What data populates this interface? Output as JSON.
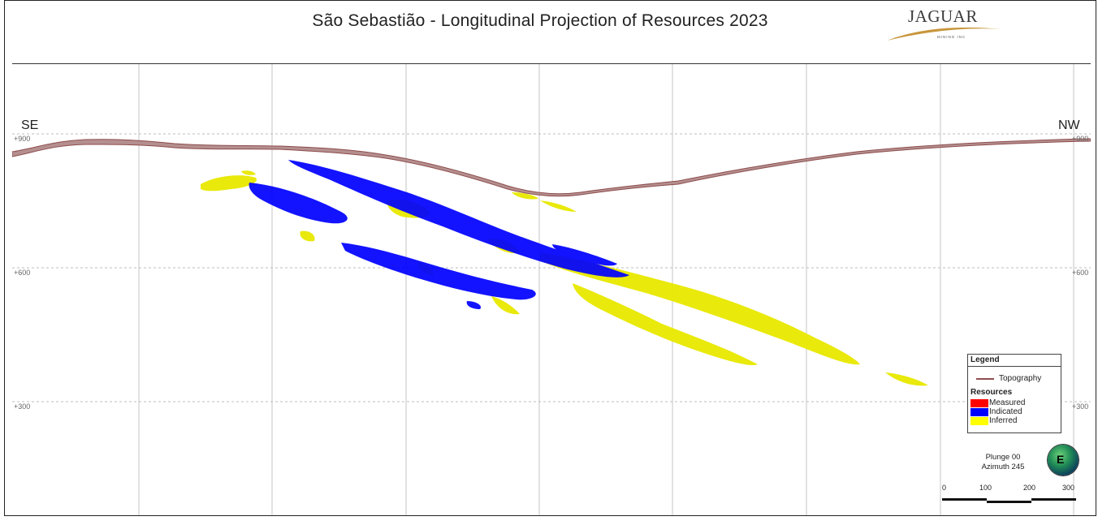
{
  "title": "São Sebastião - Longitudinal Projection of Resources 2023",
  "logo": {
    "word": "JAGUAR",
    "sub": "MINING INC"
  },
  "directions": {
    "left": "SE",
    "right": "NW"
  },
  "elevation_labels": [
    "+900",
    "+600",
    "+300"
  ],
  "legend": {
    "heading": "Legend",
    "topography": "Topography",
    "resources_heading": "Resources",
    "items": [
      {
        "label": "Measured",
        "color": "#ff0000"
      },
      {
        "label": "Indicated",
        "color": "#0000ff"
      },
      {
        "label": "Inferred",
        "color": "#ffff00"
      }
    ]
  },
  "orientation": {
    "plunge": "Plunge 00",
    "azimuth": "Azimuth 245",
    "compass_letter": "E"
  },
  "scale_bar": {
    "ticks": [
      "0",
      "100",
      "200",
      "300"
    ]
  },
  "colors": {
    "topography": "#8d4d4d",
    "indicated": "#0000ff",
    "inferred": "#e8e800",
    "grid": "#bbbbbb"
  }
}
